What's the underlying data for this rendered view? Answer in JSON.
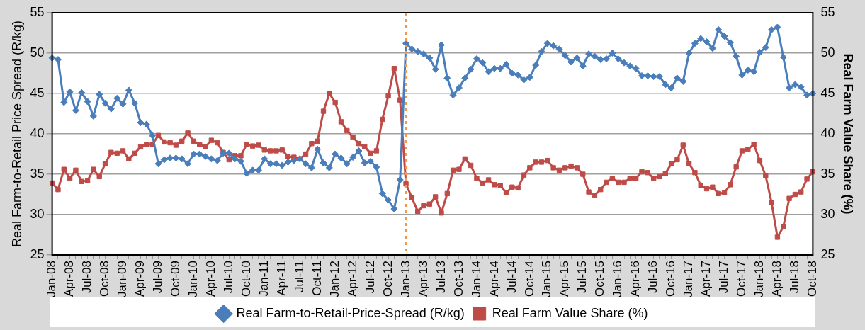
{
  "chart_data": {
    "type": "line",
    "ylabel": "Real Farm-to-Retail Price Spread (R/kg)",
    "y2label": "Real Farm Value Share (%)",
    "categories": [
      "Jan-08",
      null,
      null,
      "Apr-08",
      null,
      null,
      "Jul-08",
      null,
      null,
      "Oct-08",
      null,
      null,
      "Jan-09",
      null,
      null,
      "Apr-09",
      null,
      null,
      "Jul-09",
      null,
      null,
      "Oct-09",
      null,
      null,
      "Jan-10",
      null,
      null,
      "Apr-10",
      null,
      null,
      "Jul-10",
      null,
      null,
      "Oct-10",
      null,
      null,
      "Jan-11",
      null,
      null,
      "Apr-11",
      null,
      null,
      "Jul-11",
      null,
      null,
      "Oct-11",
      null,
      null,
      "Jan-12",
      null,
      null,
      "Apr-12",
      null,
      null,
      "Jul-12",
      null,
      null,
      "Oct-12",
      null,
      null,
      "Jan-13",
      null,
      null,
      "Apr-13",
      null,
      null,
      "Jul-13",
      null,
      null,
      "Oct-13",
      null,
      null,
      "Jan-14",
      null,
      null,
      "Apr-14",
      null,
      null,
      "Jul-14",
      null,
      null,
      "Oct-14",
      null,
      null,
      "Jan-15",
      null,
      null,
      "Apr-15",
      null,
      null,
      "Jul-15",
      null,
      null,
      "Oct-15",
      null,
      null,
      "Jan-16",
      null,
      null,
      "Apr-16",
      null,
      null,
      "Jul-16",
      null,
      null,
      "Oct-16",
      null,
      null,
      "Jan-17",
      null,
      null,
      "Apr-17",
      null,
      null,
      "Jul-17",
      null,
      null,
      "Oct-17",
      null,
      null,
      "Jan-18",
      null,
      null,
      "Apr-18",
      null,
      null,
      "Jul-18",
      null,
      null,
      "Oct-18"
    ],
    "series": [
      {
        "name": "Real Farm-to-Retail-Price-Spread (R/kg)",
        "color": "#4a7ebb",
        "marker": "diamond",
        "values": [
          49.4,
          49.2,
          43.9,
          45.2,
          42.9,
          45.1,
          44.0,
          42.2,
          44.9,
          43.8,
          43.1,
          44.4,
          43.7,
          45.4,
          43.8,
          41.4,
          41.2,
          39.8,
          36.3,
          36.8,
          37.0,
          37.0,
          36.9,
          36.3,
          37.5,
          37.5,
          37.2,
          36.9,
          36.7,
          37.6,
          37.6,
          36.9,
          36.6,
          35.1,
          35.5,
          35.5,
          36.9,
          36.3,
          36.3,
          36.1,
          36.5,
          36.7,
          36.9,
          36.3,
          35.8,
          38.1,
          36.4,
          35.8,
          37.5,
          37.0,
          36.3,
          37.1,
          37.9,
          36.4,
          36.6,
          35.9,
          32.6,
          31.8,
          30.7,
          34.3,
          51.2,
          50.5,
          50.2,
          49.9,
          49.4,
          48.0,
          51.0,
          46.9,
          44.8,
          45.7,
          46.9,
          48.0,
          49.3,
          48.8,
          47.7,
          48.1,
          48.1,
          48.6,
          47.5,
          47.3,
          46.7,
          47.0,
          48.5,
          50.2,
          51.2,
          50.9,
          50.5,
          49.7,
          48.9,
          49.4,
          48.4,
          49.9,
          49.6,
          49.2,
          49.3,
          50.0,
          49.3,
          48.8,
          48.4,
          48.1,
          47.2,
          47.2,
          47.1,
          47.1,
          46.1,
          45.7,
          46.9,
          46.5,
          50.0,
          51.2,
          51.8,
          51.4,
          50.6,
          52.9,
          52.1,
          51.3,
          49.6,
          47.3,
          47.9,
          47.7,
          50.1,
          50.7,
          52.9,
          53.2,
          49.5,
          45.7,
          46.1,
          45.8,
          44.8,
          45.0
        ]
      },
      {
        "name": "Real Farm Value Share (%)",
        "color": "#be4b48",
        "marker": "square",
        "axis": "y2",
        "values": [
          33.9,
          33.1,
          35.6,
          34.5,
          35.5,
          34.1,
          34.2,
          35.6,
          34.7,
          36.3,
          37.7,
          37.6,
          37.9,
          36.9,
          37.6,
          38.4,
          38.7,
          38.7,
          39.8,
          39.0,
          38.9,
          38.6,
          39.1,
          40.1,
          39.1,
          38.7,
          38.4,
          39.2,
          38.9,
          37.7,
          36.8,
          37.3,
          37.3,
          38.7,
          38.5,
          38.6,
          38.0,
          37.9,
          37.9,
          38.0,
          37.2,
          37.1,
          36.9,
          37.5,
          38.8,
          39.1,
          42.8,
          45.0,
          43.9,
          41.5,
          40.4,
          39.6,
          38.8,
          38.4,
          37.6,
          37.9,
          41.8,
          44.7,
          48.1,
          44.2,
          33.8,
          32.1,
          30.4,
          31.1,
          31.3,
          32.2,
          30.2,
          32.6,
          35.5,
          35.6,
          36.9,
          36.1,
          34.5,
          33.9,
          34.3,
          33.7,
          33.6,
          32.7,
          33.4,
          33.3,
          34.9,
          35.8,
          36.5,
          36.5,
          36.7,
          35.8,
          35.5,
          35.8,
          36.0,
          35.8,
          35.0,
          32.8,
          32.4,
          33.1,
          34.0,
          34.5,
          34.0,
          34.0,
          34.5,
          34.5,
          35.3,
          35.2,
          34.5,
          34.7,
          35.1,
          36.3,
          36.8,
          38.6,
          36.3,
          35.2,
          33.6,
          33.2,
          33.4,
          32.6,
          32.7,
          33.7,
          35.9,
          37.9,
          38.1,
          38.7,
          36.7,
          34.8,
          31.5,
          27.2,
          28.5,
          32.0,
          32.5,
          32.8,
          34.4,
          35.3
        ]
      }
    ],
    "ylim": [
      25,
      55
    ],
    "yticks": [
      25,
      30,
      35,
      40,
      45,
      50,
      55
    ],
    "y2lim": [
      25,
      55
    ],
    "y2ticks": [
      25,
      30,
      35,
      40,
      45,
      50,
      55
    ],
    "ref_lines": [
      {
        "axis": "x",
        "value": "Jan-13",
        "color": "#f79646",
        "line_style": "dotted"
      }
    ],
    "grid": "y",
    "legend": "bottom"
  }
}
